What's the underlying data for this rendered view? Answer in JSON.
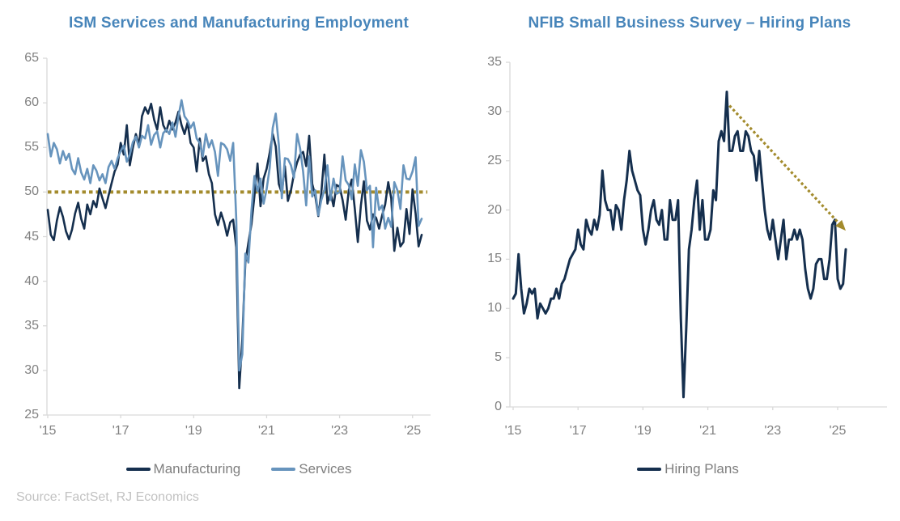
{
  "source_note": "Source: FactSet, RJ Economics",
  "colors": {
    "title": "#4785BA",
    "manufacturing": "#152F4E",
    "services": "#6794BD",
    "benchmark": "#A38B2D",
    "tick_label": "#808080",
    "legend_label": "#7F7F7F",
    "source_note": "#C2C2C2",
    "axis_line": "#D9D9D9"
  },
  "chart_data": [
    {
      "type": "line",
      "title": "ISM Services and Manufacturing Employment",
      "x_unit": "month",
      "x_start": "2015-01",
      "x_end": "2025-04",
      "x_tick_labels": [
        "'15",
        "'17",
        "'19",
        "'21",
        "'23",
        "'25"
      ],
      "ylim": [
        25,
        65
      ],
      "y_ticks": [
        65,
        60,
        55,
        50,
        45,
        40,
        35,
        30,
        25
      ],
      "grid": false,
      "legend_position": "bottom",
      "reference_line": {
        "value": 50,
        "style": "dotted",
        "color": "#A38B2D"
      },
      "series": [
        {
          "name": "Manufacturing",
          "color": "#152F4E",
          "values": [
            48.0,
            45.2,
            44.6,
            46.8,
            48.3,
            47.2,
            45.6,
            44.7,
            45.8,
            47.6,
            48.8,
            47.0,
            45.9,
            48.6,
            47.5,
            49.0,
            48.3,
            50.4,
            49.3,
            48.2,
            49.6,
            51.0,
            52.3,
            53.1,
            55.5,
            54.2,
            57.5,
            53.0,
            55.0,
            56.5,
            55.2,
            58.5,
            59.5,
            58.8,
            59.9,
            58.1,
            57.0,
            59.5,
            57.5,
            56.8,
            58.0,
            57.0,
            57.8,
            59.0,
            57.5,
            56.5,
            57.8,
            55.5,
            55.0,
            52.3,
            56.0,
            53.5,
            54.0,
            52.0,
            51.0,
            47.5,
            46.3,
            47.7,
            46.6,
            45.1,
            46.6,
            46.9,
            43.8,
            28.0,
            33.5,
            42.1,
            44.3,
            46.4,
            49.6,
            53.2,
            48.4,
            51.5,
            52.6,
            54.4,
            56.5,
            55.1,
            50.9,
            49.9,
            52.9,
            49.0,
            50.2,
            52.0,
            53.3,
            54.2,
            54.5,
            52.9,
            56.3,
            50.9,
            49.6,
            47.3,
            49.9,
            54.2,
            48.7,
            50.0,
            48.4,
            50.8,
            50.6,
            49.1,
            46.9,
            50.2,
            51.4,
            48.1,
            44.4,
            48.5,
            51.2,
            46.8,
            45.8,
            47.5,
            47.1,
            45.9,
            47.4,
            48.6,
            51.1,
            49.3,
            43.4,
            46.0,
            43.9,
            44.4,
            48.1,
            45.3,
            50.3,
            47.6,
            43.9,
            45.2
          ]
        },
        {
          "name": "Services",
          "color": "#6794BD",
          "values": [
            56.5,
            54.0,
            55.5,
            54.8,
            53.2,
            54.6,
            53.6,
            54.3,
            52.6,
            52.0,
            53.8,
            52.2,
            51.4,
            52.6,
            51.0,
            53.0,
            52.4,
            51.3,
            52.0,
            51.0,
            52.8,
            53.5,
            52.6,
            53.8,
            54.6,
            55.2,
            53.4,
            54.2,
            55.6,
            56.2,
            55.0,
            56.3,
            56.0,
            57.5,
            55.3,
            56.4,
            56.8,
            55.0,
            56.6,
            57.0,
            56.5,
            57.8,
            56.2,
            58.5,
            60.3,
            58.5,
            58.0,
            57.2,
            57.8,
            56.0,
            55.5,
            54.0,
            56.5,
            55.0,
            55.8,
            54.5,
            51.8,
            55.5,
            55.3,
            54.8,
            53.5,
            55.5,
            47.0,
            30.0,
            31.8,
            43.1,
            42.1,
            47.9,
            51.8,
            50.1,
            51.5,
            48.7,
            50.3,
            52.7,
            57.2,
            58.8,
            55.3,
            49.3,
            53.8,
            53.7,
            53.0,
            51.6,
            56.5,
            54.9,
            52.3,
            48.5,
            54.0,
            49.5,
            50.2,
            47.4,
            49.1,
            50.2,
            53.0,
            49.1,
            51.5,
            49.8,
            50.0,
            54.0,
            51.3,
            50.8,
            49.2,
            53.1,
            50.7,
            54.7,
            53.4,
            50.2,
            50.7,
            43.8,
            50.5,
            48.0,
            48.5,
            45.9,
            47.1,
            46.1,
            51.1,
            50.2,
            48.1,
            53.0,
            51.5,
            51.4,
            52.3,
            53.9,
            46.2,
            47.0
          ]
        }
      ]
    },
    {
      "type": "line",
      "title": "NFIB Small Business Survey – Hiring Plans",
      "x_unit": "month",
      "x_start": "2015-01",
      "x_end": "2025-04",
      "x_tick_labels": [
        "'15",
        "'17",
        "'19",
        "'21",
        "'23",
        "'25"
      ],
      "ylim": [
        0,
        35
      ],
      "y_ticks": [
        35,
        30,
        25,
        20,
        15,
        10,
        5,
        0
      ],
      "grid": false,
      "legend_position": "bottom",
      "annotation_arrow": {
        "from_month": "2021-09",
        "from_value": 30.6,
        "to_month": "2025-04",
        "to_value": 17.9,
        "style": "dotted",
        "color": "#A38B2D"
      },
      "series": [
        {
          "name": "Hiring Plans",
          "color": "#152F4E",
          "values": [
            11.0,
            11.5,
            15.5,
            12.0,
            9.5,
            10.5,
            12.0,
            11.5,
            12.0,
            9.0,
            10.5,
            10.0,
            9.5,
            10.0,
            11.0,
            11.0,
            12.0,
            11.0,
            12.5,
            13.0,
            14.0,
            15.0,
            15.5,
            16.0,
            18.0,
            16.5,
            16.0,
            19.0,
            18.0,
            17.5,
            19.0,
            18.0,
            19.5,
            24.0,
            21.0,
            20.0,
            20.0,
            18.0,
            20.5,
            20.0,
            18.0,
            21.0,
            23.0,
            26.0,
            24.0,
            23.0,
            22.0,
            21.5,
            18.0,
            16.5,
            18.0,
            20.0,
            21.0,
            19.0,
            18.5,
            20.0,
            17.0,
            17.0,
            21.0,
            19.0,
            19.0,
            21.0,
            9.0,
            1.0,
            8.0,
            16.0,
            18.0,
            21.0,
            23.0,
            18.0,
            21.0,
            17.0,
            17.0,
            18.0,
            22.0,
            21.0,
            27.0,
            28.0,
            27.0,
            32.0,
            26.0,
            26.0,
            27.5,
            28.0,
            26.0,
            26.0,
            28.0,
            27.5,
            26.0,
            25.5,
            23.0,
            26.0,
            23.0,
            20.0,
            18.0,
            17.0,
            19.0,
            17.0,
            15.0,
            17.0,
            19.0,
            15.0,
            17.0,
            17.0,
            18.0,
            17.0,
            18.0,
            17.0,
            14.0,
            12.0,
            11.0,
            12.0,
            14.5,
            15.0,
            15.0,
            13.0,
            13.0,
            15.0,
            18.5,
            19.0,
            13.0,
            12.0,
            12.5,
            16.0
          ]
        }
      ]
    }
  ]
}
